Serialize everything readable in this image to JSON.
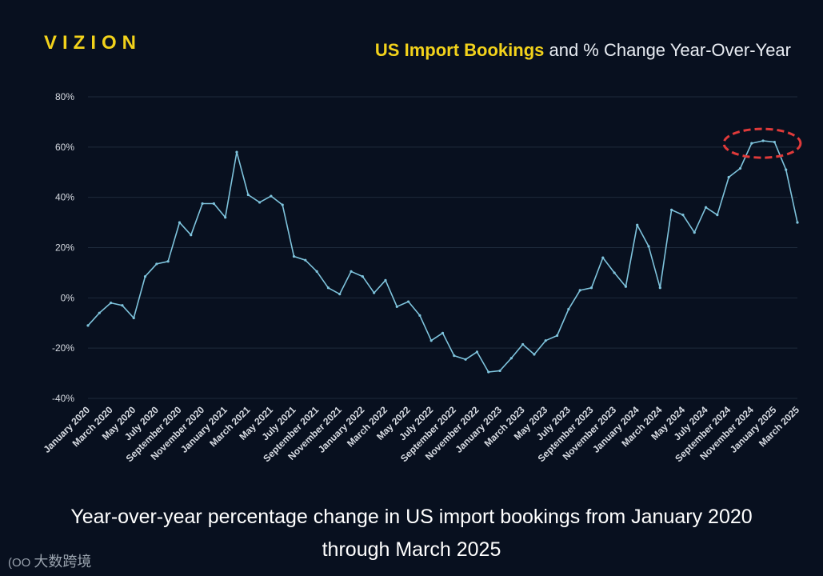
{
  "logo": "VIZION",
  "header": {
    "title_highlight": "US Import Bookings",
    "title_rest": " and % Change Year-Over-Year"
  },
  "caption": {
    "line1": "Year-over-year percentage change in US import bookings from January 2020",
    "line2": "through March 2025"
  },
  "watermark": {
    "mark": "(OO",
    "text": "大数跨境"
  },
  "colors": {
    "background": "#08101f",
    "line": "#7ec3dc",
    "grid": "#1e2a3b",
    "highlight": "#f2d21b",
    "annotation": "#e03a3a"
  },
  "chart_data": {
    "type": "line",
    "title": "US Import Bookings and % Change Year-Over-Year",
    "xlabel": "",
    "ylabel": "",
    "ylim": [
      -40,
      80
    ],
    "yticks": [
      80,
      60,
      40,
      20,
      0,
      -20,
      -40
    ],
    "ytick_labels": [
      "80%",
      "60%",
      "40%",
      "20%",
      "0%",
      "-20%",
      "-40%"
    ],
    "grid": true,
    "x_tick_labels": [
      "January 2020",
      "March 2020",
      "May 2020",
      "July 2020",
      "September 2020",
      "November 2020",
      "January 2021",
      "March 2021",
      "May 2021",
      "July 2021",
      "September 2021",
      "November 2021",
      "January 2022",
      "March 2022",
      "May 2022",
      "July 2022",
      "September 2022",
      "November 2022",
      "January 2023",
      "March 2023",
      "May 2023",
      "July 2023",
      "September 2023",
      "November 2023",
      "January 2024",
      "March 2024",
      "May 2024",
      "July 2024",
      "September 2024",
      "November 2024",
      "January 2025",
      "March 2025"
    ],
    "series": [
      {
        "name": "US Import Bookings % Change YoY",
        "values": [
          -11,
          -6,
          -2,
          -3,
          -8,
          8.5,
          13.5,
          14.5,
          30,
          25,
          37.5,
          37.5,
          32,
          58,
          41,
          38,
          40.5,
          37,
          16.5,
          15,
          10.5,
          4,
          1.5,
          10.5,
          8.5,
          2,
          7,
          -3.5,
          -1.5,
          -7,
          -17,
          -14,
          -23,
          -24.5,
          -21.5,
          -29.5,
          -29,
          -24,
          -18.5,
          -22.5,
          -17,
          -15,
          -4.5,
          3,
          4,
          16,
          10,
          4.5,
          29,
          20.5,
          4,
          35,
          33,
          26,
          36,
          33,
          48,
          51.5,
          61.5,
          62.5,
          62,
          51,
          30
        ]
      }
    ],
    "annotations": [
      {
        "type": "dashed-ellipse",
        "label": "",
        "around_months": [
          "October 2024",
          "February 2025"
        ]
      }
    ]
  }
}
